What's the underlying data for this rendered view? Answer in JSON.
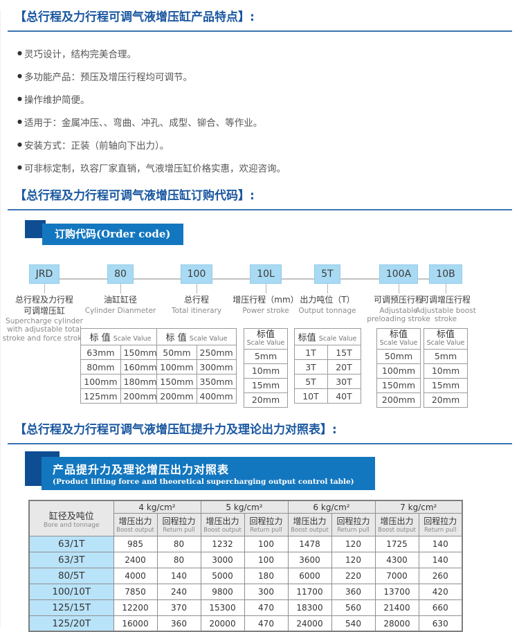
{
  "sections": {
    "features": {
      "title": "【总行程及力行程可调气液增压缸产品特点】:",
      "bullet": "●",
      "items": [
        "灵巧设计，结构完美合理。",
        "多功能产品：预压及增压行程均可调节。",
        "操作维护简便。",
        "适用于：金属冲压、、弯曲、冲孔、成型、铆合、等作业。",
        "安装方式：正装（前轴向下出力）。",
        "可非标定制，玖容厂家直销，气液增压缸价格实惠，欢迎咨询。"
      ]
    },
    "order_code": {
      "title": "【总行程及力行程可调气液增压缸订购代码】:",
      "banner": "订购代码(Order code)",
      "columns": [
        {
          "code": "JRD",
          "label_cn": [
            "总行程及力行程",
            "可调增压缸"
          ],
          "label_en": "Supercharge cylinder with adjustable total stroke and force stroke",
          "table": null
        },
        {
          "code": "80",
          "label_cn": [
            "油缸缸径"
          ],
          "label_en": "Cylinder Dianmeter",
          "table": {
            "header_cn": "标 值",
            "header_en": "Scale Value",
            "stacked": false,
            "rows": [
              [
                "63mm",
                "150mm"
              ],
              [
                "80mm",
                "160mm"
              ],
              [
                "100mm",
                "180mm"
              ],
              [
                "125mm",
                "200mm"
              ]
            ]
          }
        },
        {
          "code": "100",
          "label_cn": [
            "总行程"
          ],
          "label_en": "Total itinerary",
          "table": {
            "header_cn": "标 值",
            "header_en": "Scale Value",
            "stacked": false,
            "rows": [
              [
                "50mm",
                "250mm"
              ],
              [
                "100mm",
                "300mm"
              ],
              [
                "150mm",
                "350mm"
              ],
              [
                "200mm",
                "400mm"
              ]
            ]
          }
        },
        {
          "code": "10L",
          "label_cn": [
            "增压行程（mm）"
          ],
          "label_en": "Power stroke",
          "table": {
            "header_cn": "标值",
            "header_en": "Scale Value",
            "stacked": true,
            "rows": [
              [
                "5mm"
              ],
              [
                "10mm"
              ],
              [
                "15mm"
              ],
              [
                "20mm"
              ]
            ]
          }
        },
        {
          "code": "5T",
          "label_cn": [
            "出力吨位（T）"
          ],
          "label_en": "Output tonnage",
          "table": {
            "header_cn": "标值",
            "header_en": "Scale Value",
            "stacked": false,
            "rows": [
              [
                "1T",
                "15T"
              ],
              [
                "3T",
                "20T"
              ],
              [
                "5T",
                "30T"
              ],
              [
                "10T",
                "40T"
              ]
            ]
          }
        },
        {
          "code": "100A",
          "label_cn": [
            "可调预压行程"
          ],
          "label_en": "Adjustable preloading stroke",
          "table": {
            "header_cn": "标值",
            "header_en": "Scale Value",
            "stacked": true,
            "rows": [
              [
                "50mm"
              ],
              [
                "100mm"
              ],
              [
                "150mm"
              ],
              [
                "200mm"
              ]
            ]
          }
        },
        {
          "code": "10B",
          "label_cn": [
            "可调增压行程"
          ],
          "label_en": "Adjustable boost stroke",
          "table": {
            "header_cn": "标值",
            "header_en": "Scale Value",
            "stacked": true,
            "rows": [
              [
                "5mm"
              ],
              [
                "10mm"
              ],
              [
                "15mm"
              ],
              [
                "20mm"
              ]
            ]
          }
        }
      ]
    },
    "force_table": {
      "title": "【总行程及力行程可调气液增压缸提升力及理论出力对照表】:",
      "banner_cn": "产品提升力及理论增压出力对照表",
      "banner_en": "(Product lifting force and theoretical supercharging output control table)",
      "corner_cn": "缸径及吨位",
      "corner_en": "Bore and tonnage",
      "pressures": [
        "4 kg/cm²",
        "5 kg/cm²",
        "6 kg/cm²",
        "7 kg/cm²"
      ],
      "subcols": [
        {
          "cn": "增压出力",
          "en": "Boost output"
        },
        {
          "cn": "回程拉力",
          "en": "Return pull"
        }
      ],
      "rows": [
        {
          "model": "63/1T",
          "values": [
            985,
            80,
            1232,
            100,
            1478,
            120,
            1725,
            140
          ]
        },
        {
          "model": "63/3T",
          "values": [
            2400,
            80,
            3000,
            100,
            3600,
            120,
            4300,
            140
          ]
        },
        {
          "model": "80/5T",
          "values": [
            4000,
            140,
            5000,
            180,
            6000,
            220,
            7000,
            260
          ]
        },
        {
          "model": "100/10T",
          "values": [
            7850,
            240,
            9800,
            300,
            11700,
            360,
            13700,
            420
          ]
        },
        {
          "model": "125/15T",
          "values": [
            12200,
            370,
            15300,
            470,
            18300,
            560,
            21400,
            660
          ]
        },
        {
          "model": "125/20T",
          "values": [
            16000,
            360,
            20000,
            470,
            24000,
            540,
            28000,
            630
          ]
        }
      ]
    }
  },
  "colors": {
    "title_blue": "#1a57a0",
    "rule_blue": "#3a74b0",
    "banner_blue": "#1377bf",
    "banner_dark_blue": "#0e4d92",
    "code_box_blue": "#a9daf3",
    "model_cell_blue": "#b9e3f9",
    "header_gray": "#e8e8e8"
  }
}
